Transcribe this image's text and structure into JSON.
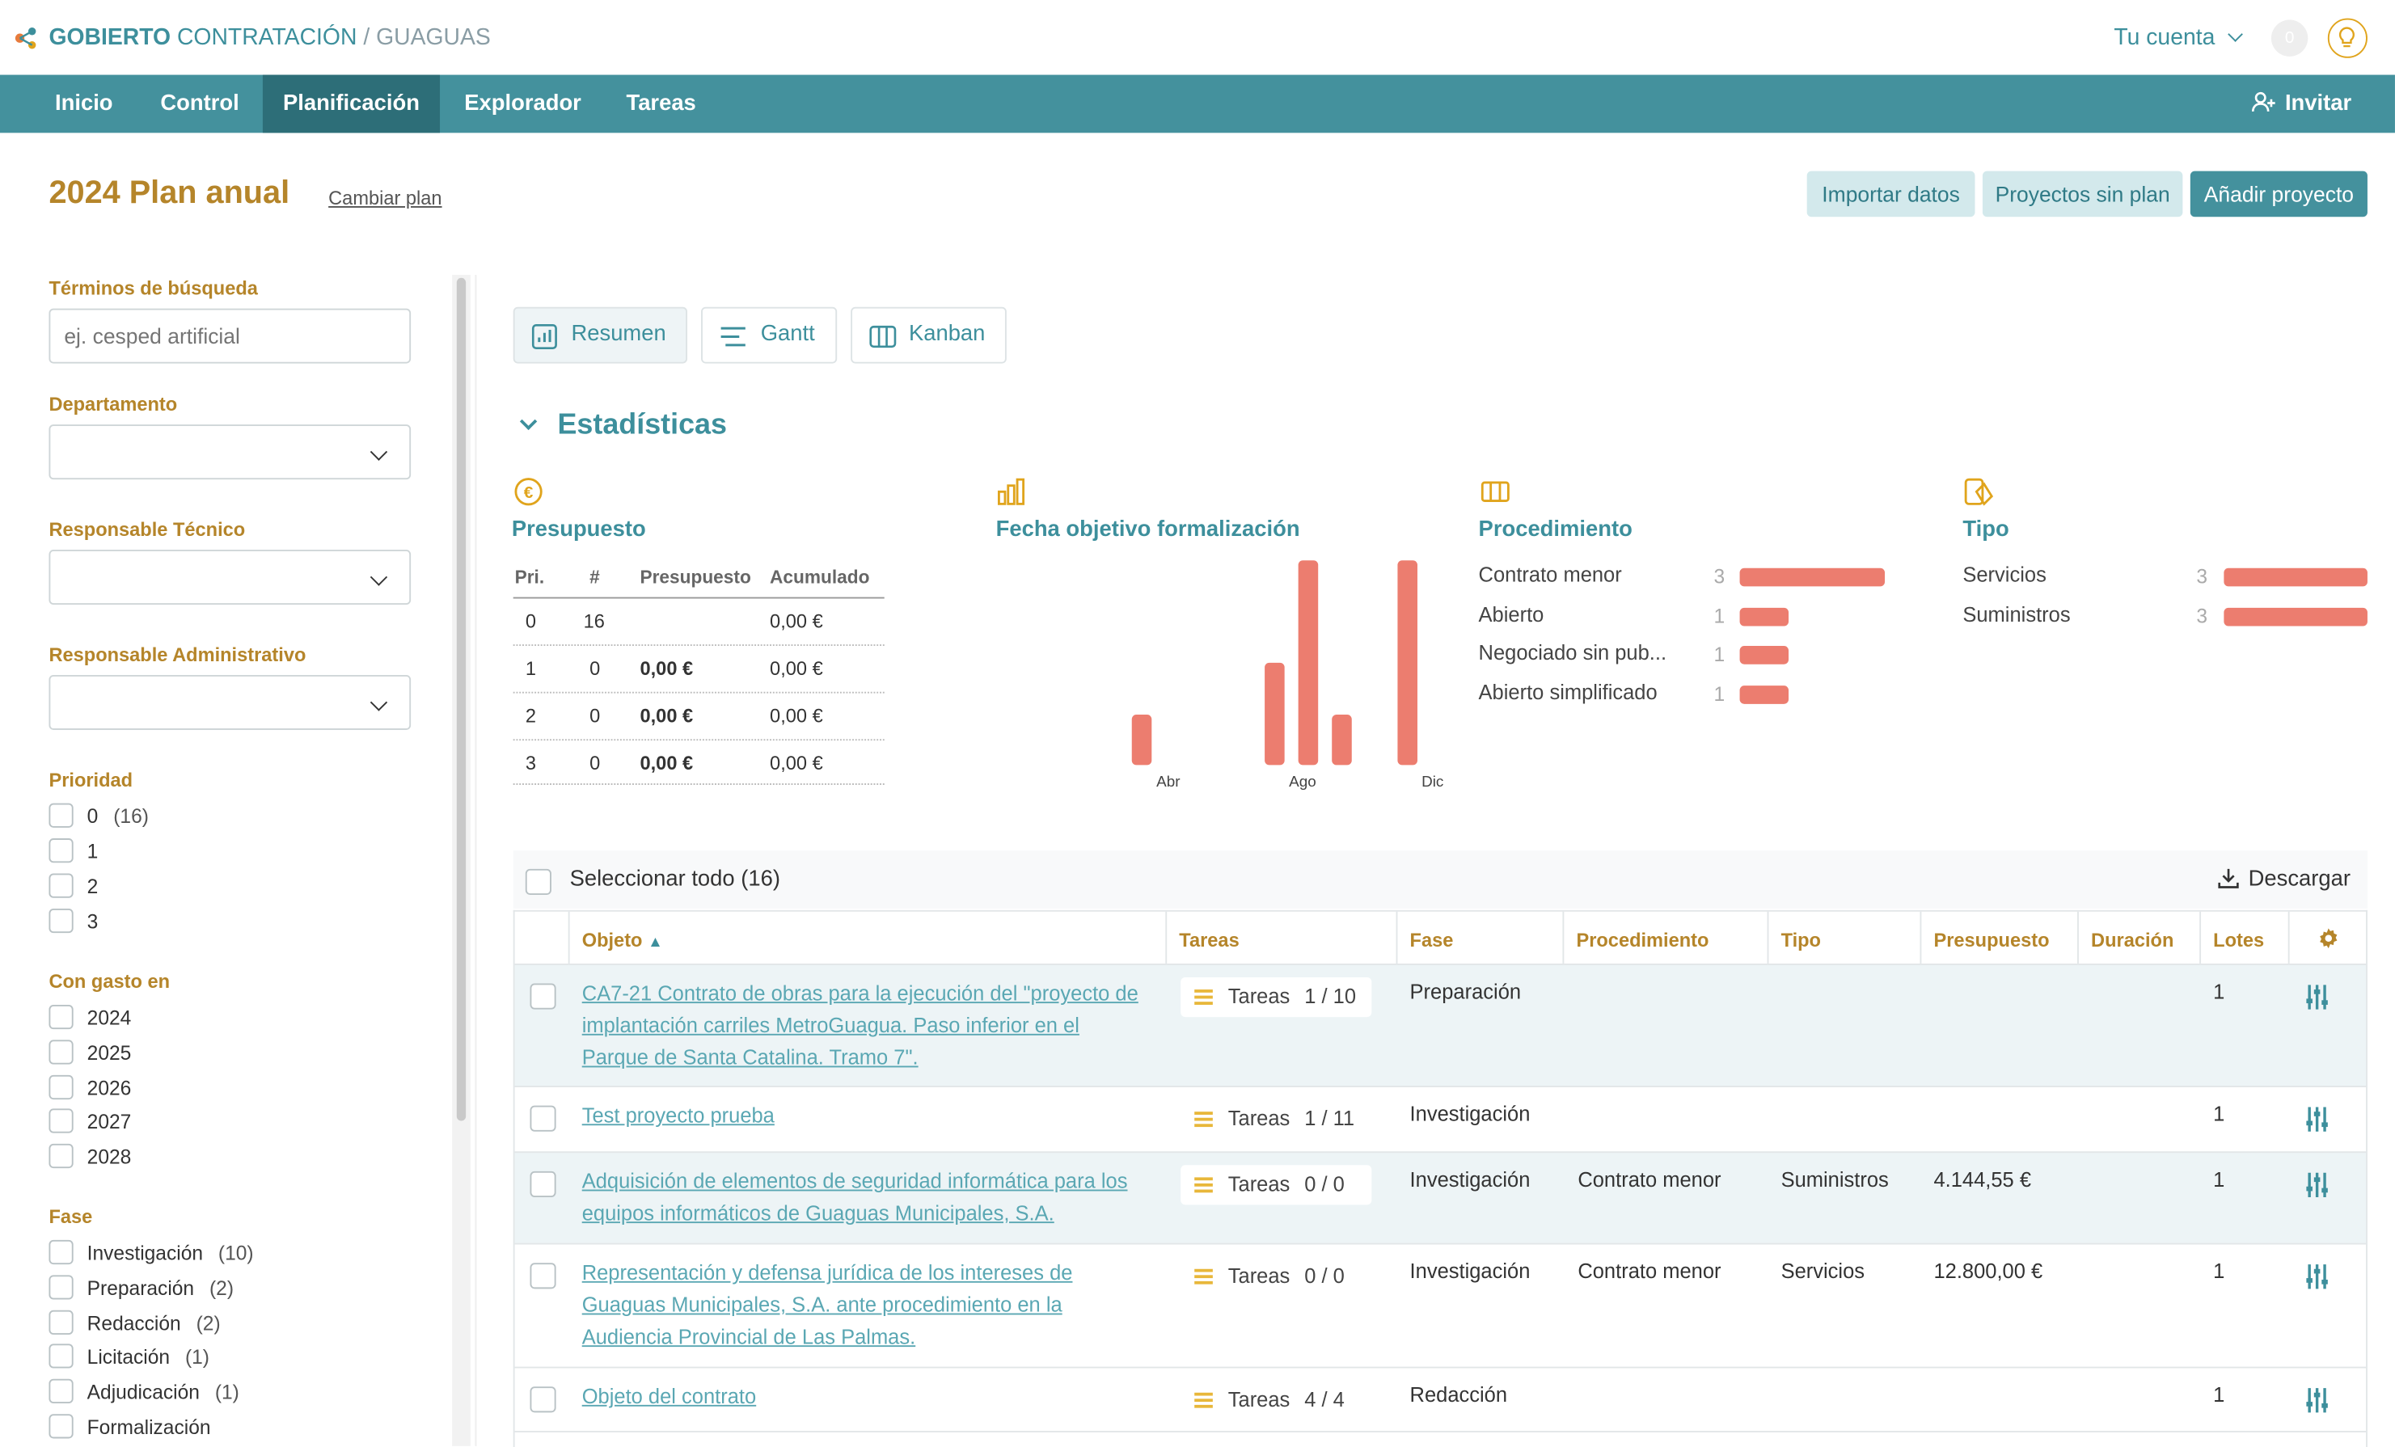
{
  "header": {
    "brand_strong": "GOBIERTO",
    "brand_light": "CONTRATACIÓN",
    "brand_sep": "/",
    "brand_sub": "GUAGUAS",
    "account": "Tu cuenta",
    "notifications": "0"
  },
  "nav": {
    "items": [
      "Inicio",
      "Control",
      "Planificación",
      "Explorador",
      "Tareas"
    ],
    "active": "Planificación",
    "invite": "Invitar"
  },
  "plan": {
    "title": "2024 Plan anual",
    "change": "Cambiar plan",
    "btn_import": "Importar datos",
    "btn_noplan": "Proyectos sin plan",
    "btn_add": "Añadir proyecto"
  },
  "filters": {
    "search_label": "Términos de búsqueda",
    "search_placeholder": "ej. cesped artificial",
    "dept_label": "Departamento",
    "tech_label": "Responsable Técnico",
    "admin_label": "Responsable Administrativo",
    "priority_label": "Prioridad",
    "priority": [
      {
        "label": "0",
        "count": "(16)"
      },
      {
        "label": "1",
        "count": ""
      },
      {
        "label": "2",
        "count": ""
      },
      {
        "label": "3",
        "count": ""
      }
    ],
    "expense_label": "Con gasto en",
    "expense": [
      "2024",
      "2025",
      "2026",
      "2027",
      "2028"
    ],
    "phase_label": "Fase",
    "phase": [
      {
        "label": "Investigación",
        "count": "(10)"
      },
      {
        "label": "Preparación",
        "count": "(2)"
      },
      {
        "label": "Redacción",
        "count": "(2)"
      },
      {
        "label": "Licitación",
        "count": "(1)"
      },
      {
        "label": "Adjudicación",
        "count": "(1)"
      },
      {
        "label": "Formalización",
        "count": ""
      }
    ]
  },
  "views": {
    "summary": "Resumen",
    "gantt": "Gantt",
    "kanban": "Kanban"
  },
  "stats": {
    "title": "Estadísticas",
    "budget": {
      "title": "Presupuesto",
      "headers": [
        "Pri.",
        "#",
        "Presupuesto",
        "Acumulado"
      ],
      "rows": [
        {
          "pri": "0",
          "n": "16",
          "budget": "",
          "acc": "0,00 €"
        },
        {
          "pri": "1",
          "n": "0",
          "budget": "0,00 €",
          "acc": "0,00 €"
        },
        {
          "pri": "2",
          "n": "0",
          "budget": "0,00 €",
          "acc": "0,00 €"
        },
        {
          "pri": "3",
          "n": "0",
          "budget": "0,00 €",
          "acc": "0,00 €"
        }
      ]
    },
    "date": {
      "title": "Fecha objetivo formalización"
    },
    "procedure": {
      "title": "Procedimiento",
      "items": [
        {
          "label": "Contrato menor",
          "value": 3
        },
        {
          "label": "Abierto",
          "value": 1
        },
        {
          "label": "Negociado sin pub...",
          "value": 1
        },
        {
          "label": "Abierto simplificado",
          "value": 1
        }
      ]
    },
    "type": {
      "title": "Tipo",
      "items": [
        {
          "label": "Servicios",
          "value": 3
        },
        {
          "label": "Suministros",
          "value": 3
        }
      ]
    }
  },
  "chart_data": {
    "type": "bar",
    "title": "Fecha objetivo formalización",
    "categories": [
      "Ene",
      "Feb",
      "Mar",
      "Abr",
      "May",
      "Jun",
      "Jul",
      "Ago",
      "Sep",
      "Oct",
      "Nov",
      "Dic"
    ],
    "tick_labels": [
      "Abr",
      "Ago",
      "Dic"
    ],
    "values": [
      0,
      0,
      1,
      0,
      0,
      0,
      2,
      4,
      1,
      0,
      4,
      0
    ],
    "xlabel": "",
    "ylabel": ""
  },
  "table": {
    "select_all": "Seleccionar todo (16)",
    "download": "Descargar",
    "headers": [
      "Objeto",
      "Tareas",
      "Fase",
      "Procedimiento",
      "Tipo",
      "Presupuesto",
      "Duración",
      "Lotes"
    ],
    "sort_indicator": "▲",
    "tasks_word": "Tareas",
    "rows": [
      {
        "objeto": "CA7-21 Contrato de obras para la ejecución del \"proyecto de implantación carriles MetroGuagua. Paso inferior en el Parque de Santa Catalina. Tramo 7\".",
        "tareas": "1 / 10",
        "fase": "Preparación",
        "proc": "",
        "tipo": "",
        "presupuesto": "",
        "duracion": "",
        "lotes": "1"
      },
      {
        "objeto": "Test proyecto prueba",
        "tareas": "1 / 11",
        "fase": "Investigación",
        "proc": "",
        "tipo": "",
        "presupuesto": "",
        "duracion": "",
        "lotes": "1"
      },
      {
        "objeto": "Adquisición de elementos de seguridad informática para los equipos informáticos de Guaguas Municipales, S.A.",
        "tareas": "0 / 0",
        "fase": "Investigación",
        "proc": "Contrato menor",
        "tipo": "Suministros",
        "presupuesto": "4.144,55 €",
        "duracion": "",
        "lotes": "1"
      },
      {
        "objeto": "Representación y defensa jurídica de los intereses de Guaguas Municipales, S.A. ante procedimiento en la Audiencia Provincial de Las Palmas.",
        "tareas": "0 / 0",
        "fase": "Investigación",
        "proc": "Contrato menor",
        "tipo": "Servicios",
        "presupuesto": "12.800,00 €",
        "duracion": "",
        "lotes": "1"
      },
      {
        "objeto": "Objeto del contrato",
        "tareas": "4 / 4",
        "fase": "Redacción",
        "proc": "",
        "tipo": "",
        "presupuesto": "",
        "duracion": "",
        "lotes": "1"
      }
    ]
  },
  "colors": {
    "accent": "#44919d",
    "accent_dark": "#2d6e78",
    "gold": "#b5852a",
    "bar": "#ec7d6f"
  }
}
